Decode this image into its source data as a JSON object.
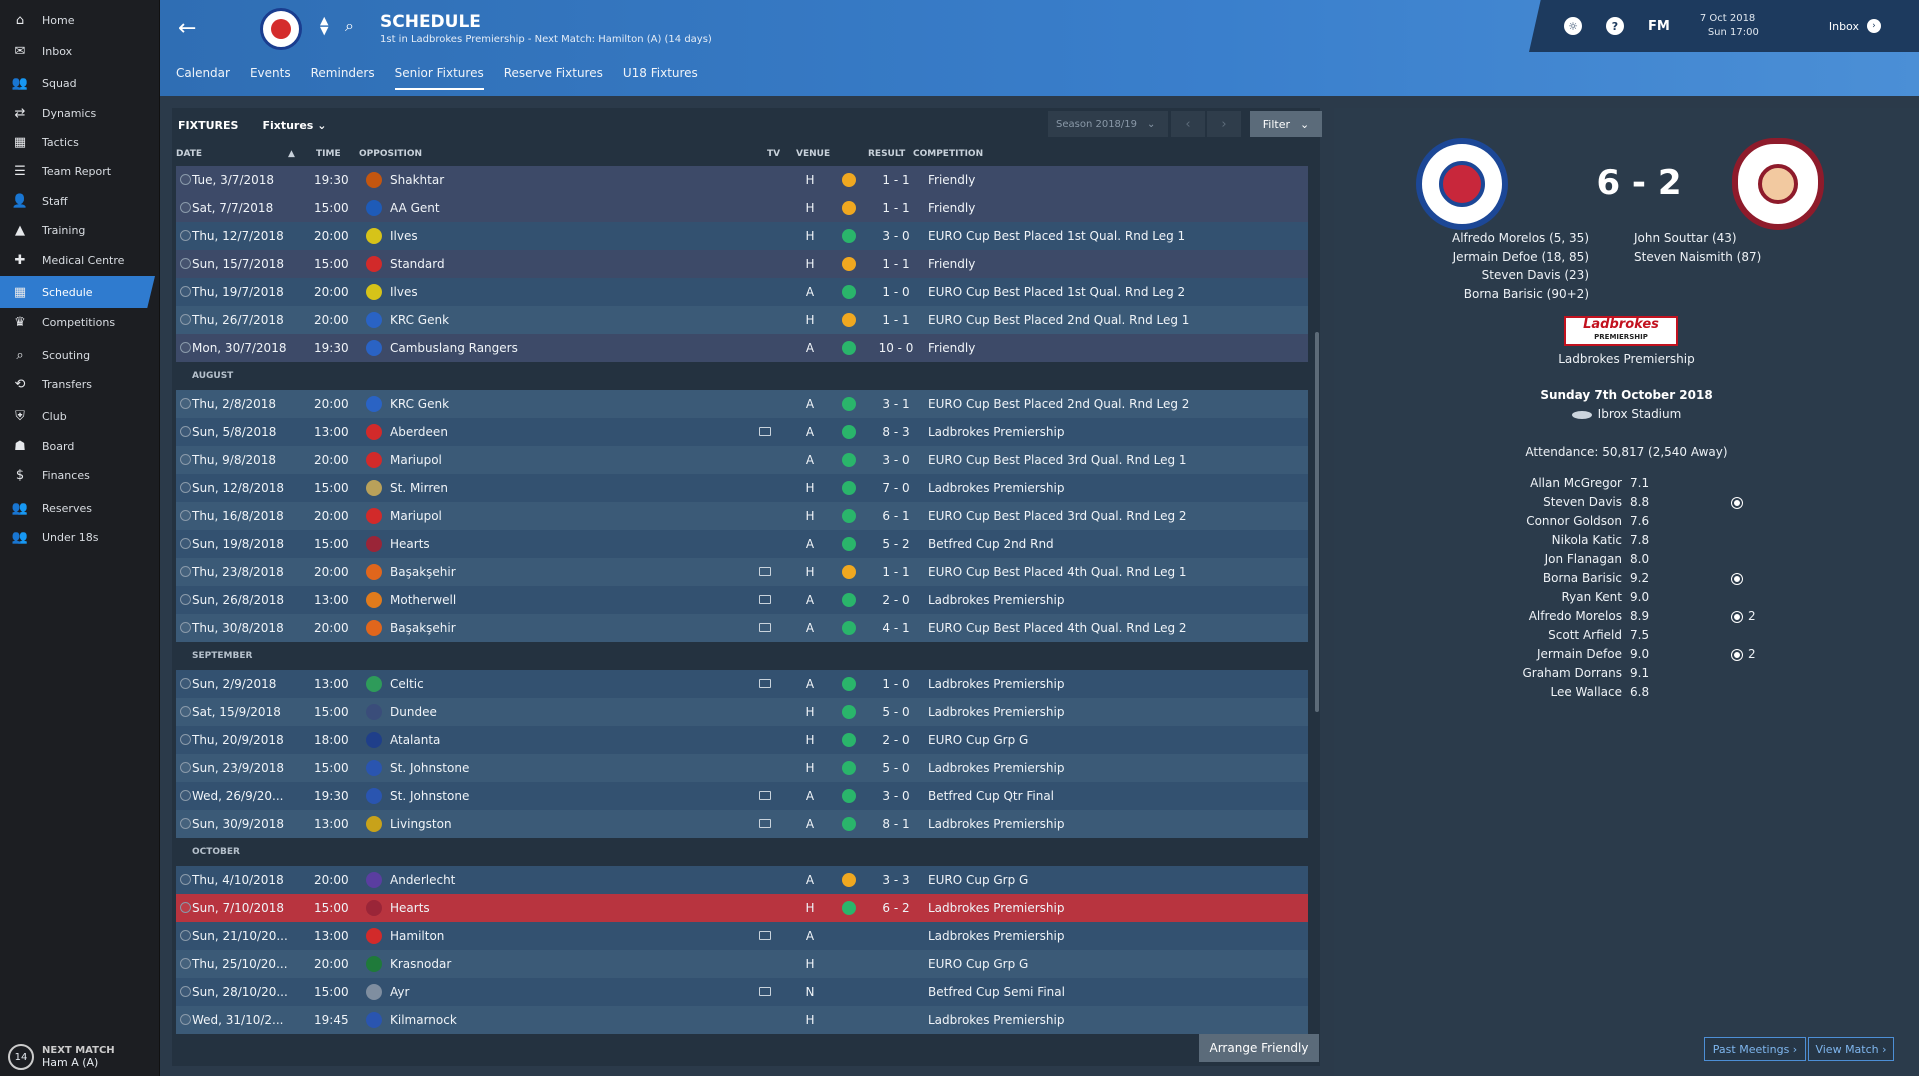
{
  "sidebar": {
    "items": [
      {
        "label": "Home",
        "icon": "⌂"
      },
      {
        "label": "Inbox",
        "icon": "✉"
      },
      {
        "label": "Squad",
        "icon": "👥"
      },
      {
        "label": "Dynamics",
        "icon": "⇄"
      },
      {
        "label": "Tactics",
        "icon": "▦"
      },
      {
        "label": "Team Report",
        "icon": "☰"
      },
      {
        "label": "Staff",
        "icon": "👤"
      },
      {
        "label": "Training",
        "icon": "▲"
      },
      {
        "label": "Medical Centre",
        "icon": "✚"
      },
      {
        "label": "Schedule",
        "icon": "▦"
      },
      {
        "label": "Competitions",
        "icon": "♛"
      },
      {
        "label": "Scouting",
        "icon": "⌕"
      },
      {
        "label": "Transfers",
        "icon": "⟲"
      },
      {
        "label": "Club",
        "icon": "⛨"
      },
      {
        "label": "Board",
        "icon": "☗"
      },
      {
        "label": "Finances",
        "icon": "$"
      },
      {
        "label": "Reserves",
        "icon": "👥"
      },
      {
        "label": "Under 18s",
        "icon": "👥"
      }
    ],
    "next_match": {
      "days": "14",
      "label": "NEXT MATCH",
      "value": "Ham A (A)"
    }
  },
  "header": {
    "title": "SCHEDULE",
    "subtitle": "1st in Ladbrokes Premiership - Next Match: Hamilton (A) (14 days)",
    "tabs": [
      "Calendar",
      "Events",
      "Reminders",
      "Senior Fixtures",
      "Reserve Fixtures",
      "U18 Fixtures"
    ],
    "active_tab": "Senior Fixtures",
    "fm_label": "FM",
    "date_line1": "7 Oct 2018",
    "date_line2": "Sun 17:00",
    "inbox_label": "Inbox"
  },
  "toolbar": {
    "title": "FIXTURES",
    "view_dropdown": "Fixtures",
    "season": "Season 2018/19",
    "filter": "Filter"
  },
  "columns": {
    "date": "DATE",
    "time": "TIME",
    "opposition": "OPPOSITION",
    "tv": "TV",
    "venue": "VENUE",
    "result": "RESULT",
    "competition": "COMPETITION"
  },
  "fixtures": [
    {
      "date": "Tue, 3/7/2018",
      "time": "19:30",
      "opp": "Shakhtar",
      "badge": "#c4560f",
      "tv": false,
      "venue": "H",
      "result": "draw",
      "score": "1 - 1",
      "comp": "Friendly",
      "kind": "friendly"
    },
    {
      "date": "Sat, 7/7/2018",
      "time": "15:00",
      "opp": "AA Gent",
      "badge": "#1e5bb8",
      "tv": false,
      "venue": "H",
      "result": "draw",
      "score": "1 - 1",
      "comp": "Friendly",
      "kind": "friendly"
    },
    {
      "date": "Thu, 12/7/2018",
      "time": "20:00",
      "opp": "Ilves",
      "badge": "#d6c319",
      "tv": false,
      "venue": "H",
      "result": "win",
      "score": "3 - 0",
      "comp": "EURO Cup Best Placed 1st Qual. Rnd Leg 1",
      "kind": "match"
    },
    {
      "date": "Sun, 15/7/2018",
      "time": "15:00",
      "opp": "Standard",
      "badge": "#d22a2a",
      "tv": false,
      "venue": "H",
      "result": "draw",
      "score": "1 - 1",
      "comp": "Friendly",
      "kind": "friendly"
    },
    {
      "date": "Thu, 19/7/2018",
      "time": "20:00",
      "opp": "Ilves",
      "badge": "#d6c319",
      "tv": false,
      "venue": "A",
      "result": "win",
      "score": "1 - 0",
      "comp": "EURO Cup Best Placed 1st Qual. Rnd Leg 2",
      "kind": "match"
    },
    {
      "date": "Thu, 26/7/2018",
      "time": "20:00",
      "opp": "KRC Genk",
      "badge": "#2a63c4",
      "tv": false,
      "venue": "H",
      "result": "draw",
      "score": "1 - 1",
      "comp": "EURO Cup Best Placed 2nd Qual. Rnd Leg 1",
      "kind": "match"
    },
    {
      "date": "Mon, 30/7/2018",
      "time": "19:30",
      "opp": "Cambuslang Rangers",
      "badge": "#2a63c4",
      "tv": false,
      "venue": "A",
      "result": "win",
      "score": "10 - 0",
      "comp": "Friendly",
      "kind": "friendly"
    },
    {
      "section": "AUGUST"
    },
    {
      "date": "Thu, 2/8/2018",
      "time": "20:00",
      "opp": "KRC Genk",
      "badge": "#2a63c4",
      "tv": false,
      "venue": "A",
      "result": "win",
      "score": "3 - 1",
      "comp": "EURO Cup Best Placed 2nd Qual. Rnd Leg 2",
      "kind": "match"
    },
    {
      "date": "Sun, 5/8/2018",
      "time": "13:00",
      "opp": "Aberdeen",
      "badge": "#d22a2a",
      "tv": true,
      "venue": "A",
      "result": "win",
      "score": "8 - 3",
      "comp": "Ladbrokes Premiership",
      "kind": "match"
    },
    {
      "date": "Thu, 9/8/2018",
      "time": "20:00",
      "opp": "Mariupol",
      "badge": "#d22a2a",
      "tv": false,
      "venue": "A",
      "result": "win",
      "score": "3 - 0",
      "comp": "EURO Cup Best Placed 3rd Qual. Rnd Leg 1",
      "kind": "match"
    },
    {
      "date": "Sun, 12/8/2018",
      "time": "15:00",
      "opp": "St. Mirren",
      "badge": "#b9a15a",
      "tv": false,
      "venue": "H",
      "result": "win",
      "score": "7 - 0",
      "comp": "Ladbrokes Premiership",
      "kind": "match"
    },
    {
      "date": "Thu, 16/8/2018",
      "time": "20:00",
      "opp": "Mariupol",
      "badge": "#d22a2a",
      "tv": false,
      "venue": "H",
      "result": "win",
      "score": "6 - 1",
      "comp": "EURO Cup Best Placed 3rd Qual. Rnd Leg 2",
      "kind": "match"
    },
    {
      "date": "Sun, 19/8/2018",
      "time": "15:00",
      "opp": "Hearts",
      "badge": "#9a2538",
      "tv": false,
      "venue": "A",
      "result": "win",
      "score": "5 - 2",
      "comp": "Betfred Cup 2nd Rnd",
      "kind": "match"
    },
    {
      "date": "Thu, 23/8/2018",
      "time": "20:00",
      "opp": "Başakşehir",
      "badge": "#e0661c",
      "tv": true,
      "venue": "H",
      "result": "draw",
      "score": "1 - 1",
      "comp": "EURO Cup Best Placed 4th Qual. Rnd Leg 1",
      "kind": "match"
    },
    {
      "date": "Sun, 26/8/2018",
      "time": "13:00",
      "opp": "Motherwell",
      "badge": "#e07b1c",
      "tv": true,
      "venue": "A",
      "result": "win",
      "score": "2 - 0",
      "comp": "Ladbrokes Premiership",
      "kind": "match"
    },
    {
      "date": "Thu, 30/8/2018",
      "time": "20:00",
      "opp": "Başakşehir",
      "badge": "#e0661c",
      "tv": true,
      "venue": "A",
      "result": "win",
      "score": "4 - 1",
      "comp": "EURO Cup Best Placed 4th Qual. Rnd Leg 2",
      "kind": "match"
    },
    {
      "section": "SEPTEMBER"
    },
    {
      "date": "Sun, 2/9/2018",
      "time": "13:00",
      "opp": "Celtic",
      "badge": "#2e9b5a",
      "tv": true,
      "venue": "A",
      "result": "win",
      "score": "1 - 0",
      "comp": "Ladbrokes Premiership",
      "kind": "match"
    },
    {
      "date": "Sat, 15/9/2018",
      "time": "15:00",
      "opp": "Dundee",
      "badge": "#3a4d7a",
      "tv": false,
      "venue": "H",
      "result": "win",
      "score": "5 - 0",
      "comp": "Ladbrokes Premiership",
      "kind": "match"
    },
    {
      "date": "Thu, 20/9/2018",
      "time": "18:00",
      "opp": "Atalanta",
      "badge": "#1f3f8a",
      "tv": false,
      "venue": "H",
      "result": "win",
      "score": "2 - 0",
      "comp": "EURO Cup Grp G",
      "kind": "match"
    },
    {
      "date": "Sun, 23/9/2018",
      "time": "15:00",
      "opp": "St. Johnstone",
      "badge": "#2a55b0",
      "tv": false,
      "venue": "H",
      "result": "win",
      "score": "5 - 0",
      "comp": "Ladbrokes Premiership",
      "kind": "match"
    },
    {
      "date": "Wed, 26/9/20...",
      "time": "19:30",
      "opp": "St. Johnstone",
      "badge": "#2a55b0",
      "tv": true,
      "venue": "A",
      "result": "win",
      "score": "3 - 0",
      "comp": "Betfred Cup Qtr Final",
      "kind": "match"
    },
    {
      "date": "Sun, 30/9/2018",
      "time": "13:00",
      "opp": "Livingston",
      "badge": "#c8a21a",
      "tv": true,
      "venue": "A",
      "result": "win",
      "score": "8 - 1",
      "comp": "Ladbrokes Premiership",
      "kind": "match"
    },
    {
      "section": "OCTOBER"
    },
    {
      "date": "Thu, 4/10/2018",
      "time": "20:00",
      "opp": "Anderlecht",
      "badge": "#5a3ea0",
      "tv": false,
      "venue": "A",
      "result": "draw",
      "score": "3 - 3",
      "comp": "EURO Cup Grp G",
      "kind": "match"
    },
    {
      "date": "Sun, 7/10/2018",
      "time": "15:00",
      "opp": "Hearts",
      "badge": "#9a2538",
      "tv": false,
      "venue": "H",
      "result": "win",
      "score": "6 - 2",
      "comp": "Ladbrokes Premiership",
      "kind": "selected"
    },
    {
      "date": "Sun, 21/10/20...",
      "time": "13:00",
      "opp": "Hamilton",
      "badge": "#d22a2a",
      "tv": true,
      "venue": "A",
      "result": "",
      "score": "",
      "comp": "Ladbrokes Premiership",
      "kind": "match"
    },
    {
      "date": "Thu, 25/10/20...",
      "time": "20:00",
      "opp": "Krasnodar",
      "badge": "#1f7a3a",
      "tv": false,
      "venue": "H",
      "result": "",
      "score": "",
      "comp": "EURO Cup Grp G",
      "kind": "match"
    },
    {
      "date": "Sun, 28/10/20...",
      "time": "15:00",
      "opp": "Ayr",
      "badge": "#7f8ea0",
      "tv": true,
      "venue": "N",
      "result": "",
      "score": "",
      "comp": "Betfred Cup Semi Final",
      "kind": "match"
    },
    {
      "date": "Wed, 31/10/2...",
      "time": "19:45",
      "opp": "Kilmarnock",
      "badge": "#2a55b0",
      "tv": false,
      "venue": "H",
      "result": "",
      "score": "",
      "comp": "Ladbrokes Premiership",
      "kind": "match"
    }
  ],
  "arrange_button": "Arrange Friendly",
  "detail": {
    "score": "6 - 2",
    "home_scorers": [
      "Alfredo Morelos (5, 35)",
      "Jermain Defoe (18, 85)",
      "Steven Davis (23)",
      "Borna Barisic (90+2)"
    ],
    "away_scorers": [
      "John Souttar (43)",
      "Steven Naismith (87)"
    ],
    "comp_logo_line1": "Ladbrokes",
    "comp_logo_line2": "PREMIERSHIP",
    "competition": "Ladbrokes Premiership",
    "date": "Sunday 7th October 2018",
    "stadium": "Ibrox Stadium",
    "attendance": "Attendance: 50,817 (2,540 Away)",
    "ratings": [
      {
        "name": "Allan McGregor",
        "rating": "7.1",
        "goals": ""
      },
      {
        "name": "Steven Davis",
        "rating": "8.8",
        "goals": "1"
      },
      {
        "name": "Connor Goldson",
        "rating": "7.6",
        "goals": ""
      },
      {
        "name": "Nikola Katic",
        "rating": "7.8",
        "goals": ""
      },
      {
        "name": "Jon Flanagan",
        "rating": "8.0",
        "goals": ""
      },
      {
        "name": "Borna Barisic",
        "rating": "9.2",
        "goals": "1"
      },
      {
        "name": "Ryan Kent",
        "rating": "9.0",
        "goals": ""
      },
      {
        "name": "Alfredo Morelos",
        "rating": "8.9",
        "goals": "2"
      },
      {
        "name": "Scott Arfield",
        "rating": "7.5",
        "goals": ""
      },
      {
        "name": "Jermain Defoe",
        "rating": "9.0",
        "goals": "2"
      },
      {
        "name": "Graham Dorrans",
        "rating": "9.1",
        "goals": ""
      },
      {
        "name": "Lee Wallace",
        "rating": "6.8",
        "goals": ""
      }
    ],
    "past_meetings": "Past Meetings ›",
    "view_match": "View Match ›"
  },
  "colors": {
    "win": "#2ab56b",
    "draw": "#f0a820",
    "accent": "#2f7bcf",
    "selected": "#b8343f"
  }
}
